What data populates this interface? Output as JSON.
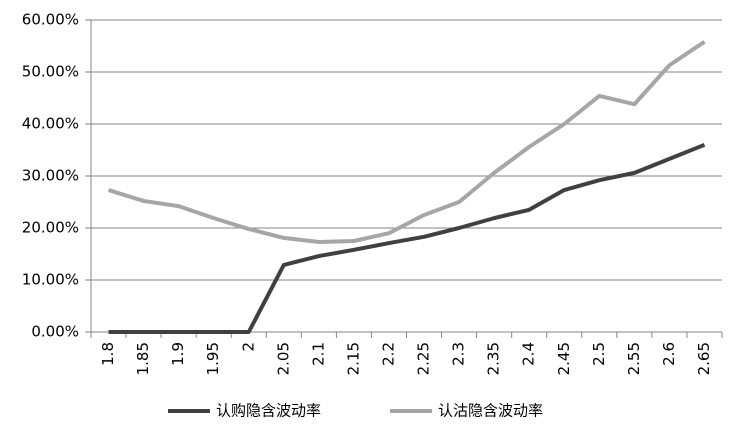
{
  "chart_data": {
    "type": "line",
    "categories": [
      "1.8",
      "1.85",
      "1.9",
      "1.95",
      "2",
      "2.05",
      "2.1",
      "2.15",
      "2.2",
      "2.25",
      "2.3",
      "2.35",
      "2.4",
      "2.45",
      "2.5",
      "2.55",
      "2.6",
      "2.65"
    ],
    "series": [
      {
        "name": "认购隐含波动率",
        "color": "#404040",
        "values": [
          0,
          0,
          0,
          0,
          0,
          12.9,
          14.6,
          15.8,
          17.1,
          18.3,
          20.0,
          21.9,
          23.5,
          27.3,
          29.2,
          30.6,
          33.3,
          36.0
        ]
      },
      {
        "name": "认沽隐含波动率",
        "color": "#a6a6a6",
        "values": [
          27.3,
          25.2,
          24.2,
          21.9,
          19.8,
          18.1,
          17.3,
          17.5,
          19.0,
          22.5,
          25.0,
          30.6,
          35.6,
          40.0,
          45.4,
          43.8,
          51.3,
          55.8
        ]
      }
    ],
    "ylim": [
      0,
      60
    ],
    "yticks": [
      {
        "value": 0,
        "label": "0.00%"
      },
      {
        "value": 10,
        "label": "10.00%"
      },
      {
        "value": 20,
        "label": "20.00%"
      },
      {
        "value": 30,
        "label": "30.00%"
      },
      {
        "value": 40,
        "label": "40.00%"
      },
      {
        "value": 50,
        "label": "50.00%"
      },
      {
        "value": 60,
        "label": "60.00%"
      }
    ],
    "grid": true,
    "legend": "bottom"
  }
}
